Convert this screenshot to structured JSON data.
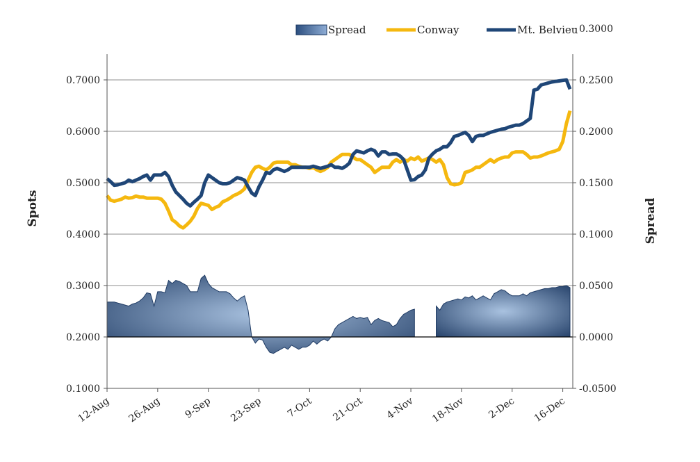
{
  "chart_data": {
    "type": "line",
    "ylabel": "Spots",
    "y2label": "Spread",
    "ylim": [
      0.1,
      0.75
    ],
    "y2lim": [
      -0.05,
      0.275
    ],
    "yticks": [
      "0.1000",
      "0.2000",
      "0.3000",
      "0.4000",
      "0.5000",
      "0.6000",
      "0.7000"
    ],
    "y2ticks": [
      "-0.0500",
      "0.0000",
      "0.0500",
      "0.1000",
      "0.1500",
      "0.2000",
      "0.2500",
      "0.3000"
    ],
    "xticks": [
      "12-Aug",
      "26-Aug",
      "9-Sep",
      "23-Sep",
      "7-Oct",
      "21-Oct",
      "4-Nov",
      "18-Nov",
      "2-Dec",
      "16-Dec"
    ],
    "grid": true,
    "legend_position": "top-right",
    "legend": [
      {
        "name": "Spread",
        "kind": "area"
      },
      {
        "name": "Conway",
        "kind": "line"
      },
      {
        "name": "Mt. Belvieu",
        "kind": "line"
      }
    ],
    "colors": {
      "conway": "#f5b80f",
      "belvieu": "#1f4677",
      "spread_dark": "#1f3b64",
      "spread_light": "#a9c2e0",
      "grid": "#8c8c8c"
    },
    "x": [
      0,
      1,
      2,
      3,
      4,
      5,
      6,
      7,
      8,
      9,
      10,
      11,
      12,
      13,
      14,
      15,
      16,
      17,
      18,
      19,
      20,
      21,
      22,
      23,
      24,
      25,
      26,
      27,
      28,
      29,
      30,
      31,
      32,
      33,
      34,
      35,
      36,
      37,
      38,
      39,
      40,
      41,
      42,
      43,
      44,
      45,
      46,
      47,
      48,
      49,
      50,
      51,
      52,
      53,
      54,
      55,
      56,
      57,
      58,
      59,
      60,
      61,
      62,
      63,
      64,
      65,
      66,
      67,
      68,
      69,
      70,
      71,
      72,
      73,
      74,
      75,
      76,
      77,
      78,
      79,
      80,
      81,
      82,
      83,
      84,
      85,
      86,
      87,
      88,
      89,
      90,
      91,
      92,
      93,
      94,
      95,
      96,
      97,
      98,
      99,
      100,
      101,
      102,
      103,
      104,
      105,
      106,
      107,
      108,
      109,
      110,
      111,
      112,
      113,
      114,
      115,
      116,
      117,
      118,
      119,
      120,
      121,
      122,
      123,
      124,
      125,
      126,
      127,
      128
    ],
    "series": [
      {
        "name": "Conway",
        "values": [
          0.475,
          0.466,
          0.464,
          0.466,
          0.468,
          0.472,
          0.47,
          0.471,
          0.474,
          0.472,
          0.472,
          0.47,
          0.47,
          0.47,
          0.47,
          0.468,
          0.46,
          0.445,
          0.428,
          0.423,
          0.416,
          0.412,
          0.418,
          0.425,
          0.435,
          0.45,
          0.46,
          0.458,
          0.456,
          0.448,
          0.452,
          0.455,
          0.463,
          0.466,
          0.47,
          0.475,
          0.478,
          0.482,
          0.488,
          0.505,
          0.52,
          0.53,
          0.532,
          0.528,
          0.525,
          0.53,
          0.538,
          0.54,
          0.54,
          0.54,
          0.54,
          0.535,
          0.535,
          0.532,
          0.53,
          0.53,
          0.528,
          0.53,
          0.525,
          0.522,
          0.525,
          0.53,
          0.54,
          0.545,
          0.55,
          0.555,
          0.555,
          0.555,
          0.55,
          0.545,
          0.545,
          0.54,
          0.535,
          0.53,
          0.52,
          0.525,
          0.53,
          0.53,
          0.53,
          0.54,
          0.545,
          0.54,
          0.545,
          0.542,
          0.548,
          0.545,
          0.55,
          0.542,
          0.545,
          0.548,
          0.545,
          0.54,
          0.545,
          0.535,
          0.51,
          0.498,
          0.496,
          0.497,
          0.5,
          0.52,
          0.522,
          0.525,
          0.53,
          0.53,
          0.535,
          0.54,
          0.545,
          0.54,
          0.545,
          0.548,
          0.55,
          0.55,
          0.558,
          0.56,
          0.56,
          0.56,
          0.555,
          0.548,
          0.55,
          0.55,
          0.552,
          0.555,
          0.558,
          0.56,
          0.562,
          0.565,
          0.58,
          0.615,
          0.64
        ]
      },
      {
        "name": "Mt. Belvieu",
        "values": [
          0.508,
          0.502,
          0.495,
          0.496,
          0.498,
          0.5,
          0.505,
          0.502,
          0.505,
          0.508,
          0.512,
          0.515,
          0.505,
          0.515,
          0.515,
          0.515,
          0.52,
          0.512,
          0.495,
          0.482,
          0.475,
          0.468,
          0.46,
          0.455,
          0.462,
          0.468,
          0.475,
          0.5,
          0.515,
          0.51,
          0.505,
          0.5,
          0.498,
          0.498,
          0.5,
          0.505,
          0.51,
          0.508,
          0.505,
          0.492,
          0.48,
          0.475,
          0.492,
          0.505,
          0.52,
          0.518,
          0.525,
          0.528,
          0.525,
          0.522,
          0.525,
          0.53,
          0.53,
          0.53,
          0.53,
          0.53,
          0.53,
          0.532,
          0.53,
          0.528,
          0.53,
          0.532,
          0.535,
          0.53,
          0.53,
          0.528,
          0.532,
          0.538,
          0.555,
          0.562,
          0.56,
          0.558,
          0.562,
          0.565,
          0.562,
          0.552,
          0.56,
          0.56,
          0.555,
          0.556,
          0.556,
          0.552,
          0.545,
          0.525,
          0.505,
          0.506,
          0.512,
          0.515,
          0.525,
          0.548,
          0.556,
          0.562,
          0.565,
          0.57,
          0.57,
          0.578,
          0.59,
          0.592,
          0.595,
          0.598,
          0.592,
          0.58,
          0.59,
          0.592,
          0.592,
          0.595,
          0.598,
          0.6,
          0.602,
          0.604,
          0.605,
          0.608,
          0.61,
          0.612,
          0.612,
          0.615,
          0.62,
          0.625,
          0.68,
          0.682,
          0.69,
          0.692,
          0.694,
          0.696,
          0.697,
          0.698,
          0.699,
          0.7,
          0.682
        ],
        "note_hidden": false
      },
      {
        "name": "Spread",
        "values": [
          0.034,
          0.034,
          0.034,
          0.033,
          0.032,
          0.031,
          0.03,
          0.032,
          0.033,
          0.035,
          0.038,
          0.043,
          0.042,
          0.03,
          0.044,
          0.044,
          0.043,
          0.055,
          0.052,
          0.055,
          0.054,
          0.052,
          0.05,
          0.044,
          0.044,
          0.044,
          0.057,
          0.06,
          0.052,
          0.048,
          0.046,
          0.044,
          0.044,
          0.044,
          0.042,
          0.038,
          0.035,
          0.038,
          0.04,
          0.026,
          0.0,
          -0.006,
          -0.002,
          -0.003,
          -0.01,
          -0.015,
          -0.016,
          -0.014,
          -0.012,
          -0.01,
          -0.012,
          -0.008,
          -0.01,
          -0.012,
          -0.01,
          -0.01,
          -0.008,
          -0.004,
          -0.007,
          -0.004,
          -0.002,
          -0.004,
          0.0,
          0.008,
          0.012,
          0.014,
          0.016,
          0.018,
          0.02,
          0.018,
          0.019,
          0.018,
          0.019,
          0.012,
          0.016,
          0.018,
          0.016,
          0.015,
          0.014,
          0.01,
          0.012,
          0.018,
          0.022,
          0.024,
          0.026,
          0.027,
          null,
          null,
          null,
          null,
          null,
          0.03,
          0.026,
          0.032,
          0.034,
          0.035,
          0.036,
          0.037,
          0.036,
          0.039,
          0.038,
          0.04,
          0.036,
          0.038,
          0.04,
          0.038,
          0.036,
          0.042,
          0.044,
          0.046,
          0.045,
          0.042,
          0.04,
          0.04,
          0.04,
          0.042,
          0.04,
          0.043,
          0.044,
          0.045,
          0.046,
          0.047,
          0.047,
          0.048,
          0.048,
          0.049,
          0.049,
          0.05,
          0.048
        ]
      }
    ]
  }
}
